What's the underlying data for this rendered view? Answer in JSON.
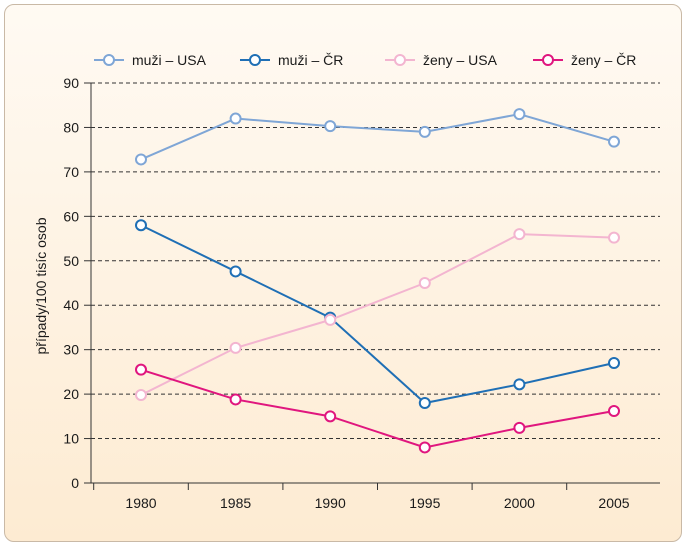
{
  "chart_data": {
    "type": "line",
    "title": "",
    "xlabel": "",
    "ylabel": "případy/100 tisíc osob",
    "x": [
      1980,
      1985,
      1990,
      1995,
      2000,
      2005
    ],
    "x_tick_labels": [
      "1980",
      "1985",
      "1990",
      "1995",
      "2000",
      "2005"
    ],
    "ylim": [
      0,
      90
    ],
    "y_ticks": [
      0,
      10,
      20,
      30,
      40,
      50,
      60,
      70,
      80,
      90
    ],
    "y_tick_labels": [
      "0",
      "10",
      "20",
      "30",
      "40",
      "50",
      "60",
      "70",
      "80",
      "90"
    ],
    "grid": "horizontal dashed",
    "legend_position": "top",
    "series": [
      {
        "name": "muži – USA",
        "color": "#7fa6d6",
        "values": [
          72.8,
          82.0,
          80.3,
          79.0,
          83.0,
          76.8
        ]
      },
      {
        "name": "muži – ČR",
        "color": "#1f6fb5",
        "values": [
          58.0,
          47.6,
          37.2,
          18.0,
          22.2,
          27.0
        ]
      },
      {
        "name": "ženy – USA",
        "color": "#f3b5d0",
        "values": [
          19.8,
          30.4,
          36.7,
          45.0,
          56.0,
          55.2
        ]
      },
      {
        "name": "ženy – ČR",
        "color": "#e0167e",
        "values": [
          25.5,
          18.8,
          15.0,
          8.0,
          12.4,
          16.2
        ]
      }
    ]
  }
}
